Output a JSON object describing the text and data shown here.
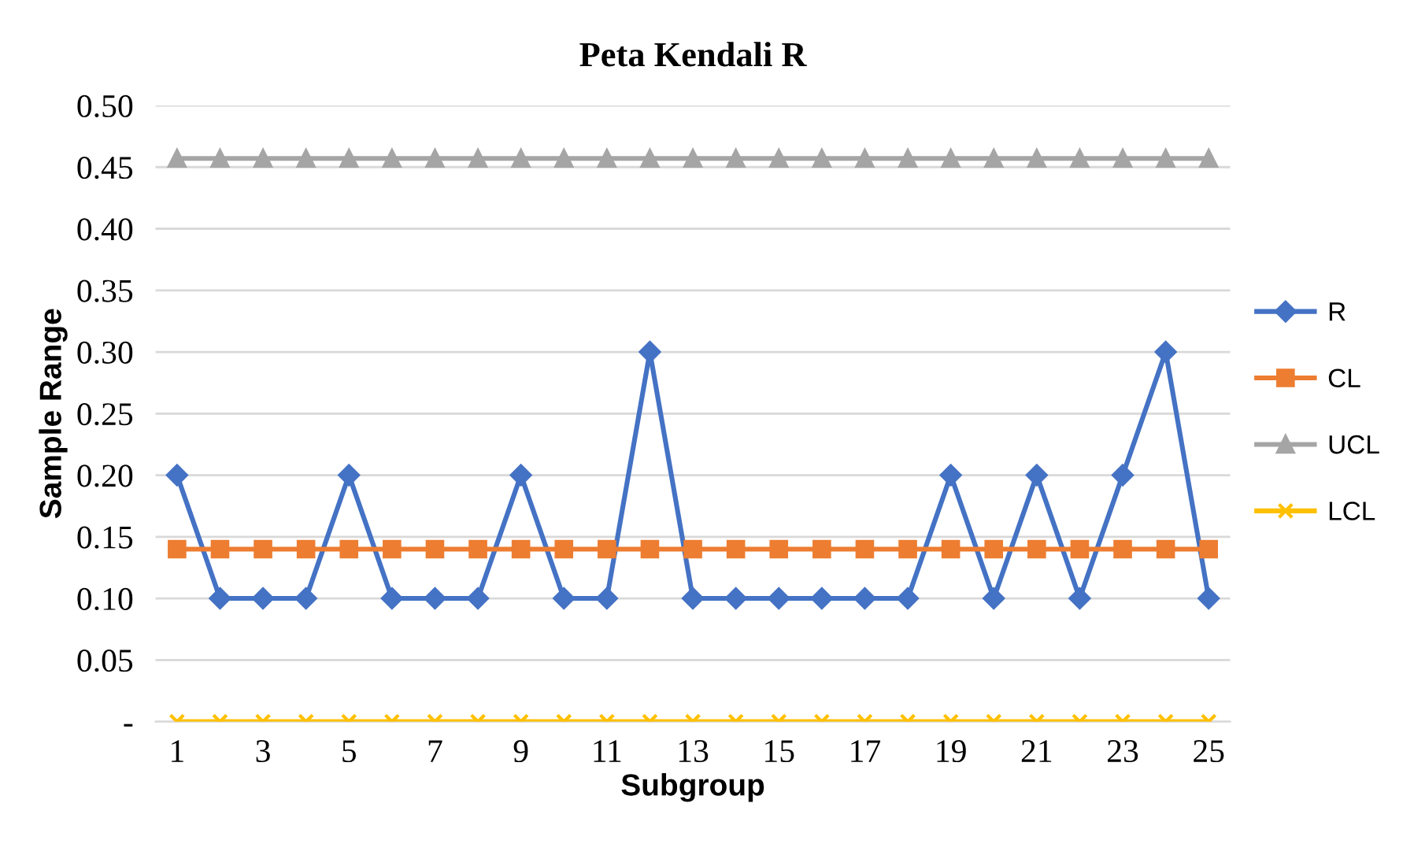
{
  "chart_data": {
    "type": "line",
    "title": "Peta Kendali R",
    "xlabel": "Subgroup",
    "ylabel": "Sample Range",
    "categories": [
      "1",
      null,
      "3",
      null,
      "5",
      null,
      "7",
      null,
      "9",
      null,
      "11",
      null,
      "13",
      null,
      "15",
      null,
      "17",
      null,
      "19",
      null,
      "21",
      null,
      "23",
      null,
      "25"
    ],
    "series": [
      {
        "name": "R",
        "color": "#4472c4",
        "marker": "diamond",
        "values": [
          0.2,
          0.1,
          0.1,
          0.1,
          0.2,
          0.1,
          0.1,
          0.1,
          0.2,
          0.1,
          0.1,
          0.3,
          0.1,
          0.1,
          0.1,
          0.1,
          0.1,
          0.1,
          0.2,
          0.1,
          0.2,
          0.1,
          0.2,
          0.3,
          0.1
        ]
      },
      {
        "name": "CL",
        "color": "#ed7d31",
        "marker": "square",
        "values": [
          0.14,
          0.14,
          0.14,
          0.14,
          0.14,
          0.14,
          0.14,
          0.14,
          0.14,
          0.14,
          0.14,
          0.14,
          0.14,
          0.14,
          0.14,
          0.14,
          0.14,
          0.14,
          0.14,
          0.14,
          0.14,
          0.14,
          0.14,
          0.14,
          0.14
        ]
      },
      {
        "name": "UCL",
        "color": "#a5a5a5",
        "marker": "triangle",
        "values": [
          0.457,
          0.457,
          0.457,
          0.457,
          0.457,
          0.457,
          0.457,
          0.457,
          0.457,
          0.457,
          0.457,
          0.457,
          0.457,
          0.457,
          0.457,
          0.457,
          0.457,
          0.457,
          0.457,
          0.457,
          0.457,
          0.457,
          0.457,
          0.457,
          0.457
        ]
      },
      {
        "name": "LCL",
        "color": "#ffc000",
        "marker": "cross",
        "values": [
          0,
          0,
          0,
          0,
          0,
          0,
          0,
          0,
          0,
          0,
          0,
          0,
          0,
          0,
          0,
          0,
          0,
          0,
          0,
          0,
          0,
          0,
          0,
          0,
          0
        ]
      }
    ],
    "ylim": [
      0,
      0.5
    ],
    "yticks": [
      {
        "value": 0,
        "label": "-"
      },
      {
        "value": 0.05,
        "label": "0.05"
      },
      {
        "value": 0.1,
        "label": "0.10"
      },
      {
        "value": 0.15,
        "label": "0.15"
      },
      {
        "value": 0.2,
        "label": "0.20"
      },
      {
        "value": 0.25,
        "label": "0.25"
      },
      {
        "value": 0.3,
        "label": "0.30"
      },
      {
        "value": 0.35,
        "label": "0.35"
      },
      {
        "value": 0.4,
        "label": "0.40"
      },
      {
        "value": 0.45,
        "label": "0.45"
      },
      {
        "value": 0.5,
        "label": "0.50"
      }
    ],
    "grid": "y",
    "legend": "right",
    "line_style": "solid"
  }
}
